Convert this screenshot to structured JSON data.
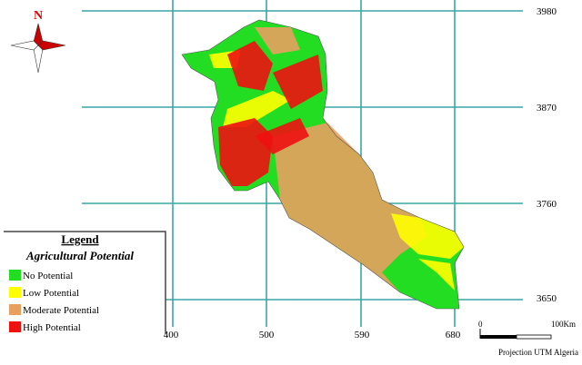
{
  "north_label": "N",
  "grid": {
    "y_labels": [
      3980,
      3870,
      3760,
      3650
    ],
    "x_labels": [
      400,
      500,
      590,
      680
    ]
  },
  "legend": {
    "title": "Legend",
    "subtitle": "Agricultural Potential",
    "items": [
      {
        "label": "No Potential",
        "color": "#22dd22"
      },
      {
        "label": "Low Potential",
        "color": "#ffff00"
      },
      {
        "label": "Moderate Potential",
        "color": "#e8a060"
      },
      {
        "label": "High Potential",
        "color": "#ee1111"
      }
    ]
  },
  "scale_bar": {
    "start": "0",
    "end": "100Km"
  },
  "projection": "Projection UTM Algeria"
}
